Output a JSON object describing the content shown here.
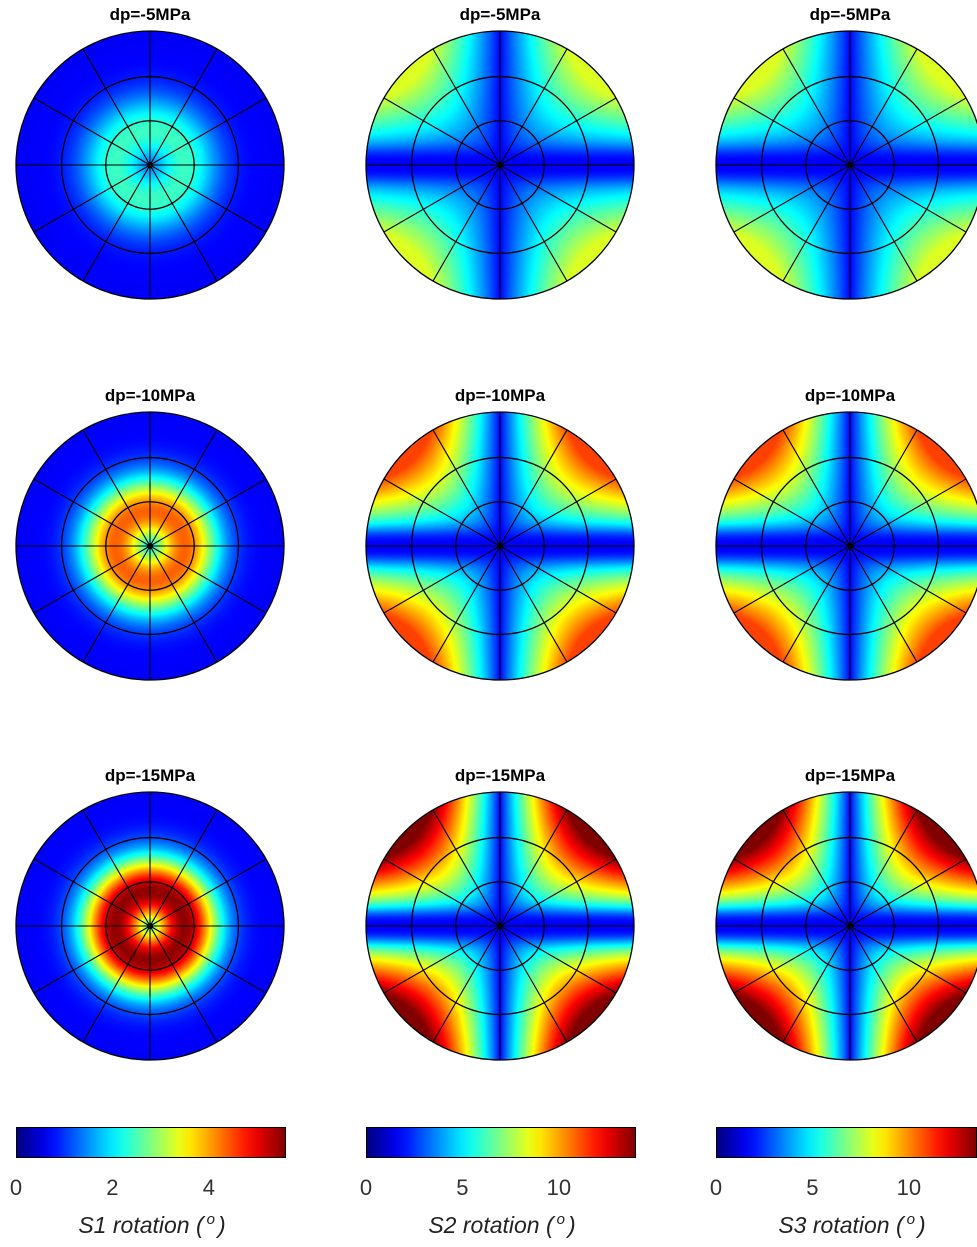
{
  "figure": {
    "panels": [
      {
        "title": "dp=-5MPa",
        "component": "S1",
        "max": 2.0
      },
      {
        "title": "dp=-5MPa",
        "component": "S2",
        "max": 7.5
      },
      {
        "title": "dp=-5MPa",
        "component": "S3",
        "max": 7.5
      },
      {
        "title": "dp=-10MPa",
        "component": "S1",
        "max": 4.2
      },
      {
        "title": "dp=-10MPa",
        "component": "S2",
        "max": 11.0
      },
      {
        "title": "dp=-10MPa",
        "component": "S3",
        "max": 11.0
      },
      {
        "title": "dp=-15MPa",
        "component": "S1",
        "max": 5.5
      },
      {
        "title": "dp=-15MPa",
        "component": "S2",
        "max": 14.0
      },
      {
        "title": "dp=-15MPa",
        "component": "S3",
        "max": 14.0
      }
    ],
    "colorbars": [
      {
        "label_main": "S1 rotation (",
        "label_unit": "o",
        "label_end": ")",
        "ticks": [
          "0",
          "2",
          "4"
        ],
        "tick_values": [
          0,
          2,
          4
        ],
        "range": [
          0,
          5.6
        ]
      },
      {
        "label_main": "S2 rotation (",
        "label_unit": "o",
        "label_end": ")",
        "ticks": [
          "0",
          "5",
          "10"
        ],
        "tick_values": [
          0,
          5,
          10
        ],
        "range": [
          0,
          14
        ]
      },
      {
        "label_main": "S3 rotation (",
        "label_unit": "o",
        "label_end": ")",
        "ticks": [
          "0",
          "5",
          "10"
        ],
        "tick_values": [
          0,
          5,
          10
        ],
        "range": [
          0,
          14
        ]
      }
    ],
    "colormap": "jet"
  },
  "chart_data": {
    "type": "heatmap",
    "projection": "polar stereonet (lower hemisphere)",
    "rows": [
      "dp=-5MPa",
      "dp=-10MPa",
      "dp=-15MPa"
    ],
    "columns": [
      "S1 rotation",
      "S2 rotation",
      "S3 rotation"
    ],
    "units": "degrees",
    "colorbar_ranges": {
      "S1": [
        0,
        5.6
      ],
      "S2": [
        0,
        14
      ],
      "S3": [
        0,
        14
      ]
    },
    "approx_max_values": [
      [
        2.0,
        7.5,
        7.5
      ],
      [
        4.2,
        11.0,
        11.0
      ],
      [
        5.5,
        14.0,
        14.0
      ]
    ],
    "grid": "polar grid with 3 concentric circles and 12 radial spokes"
  }
}
